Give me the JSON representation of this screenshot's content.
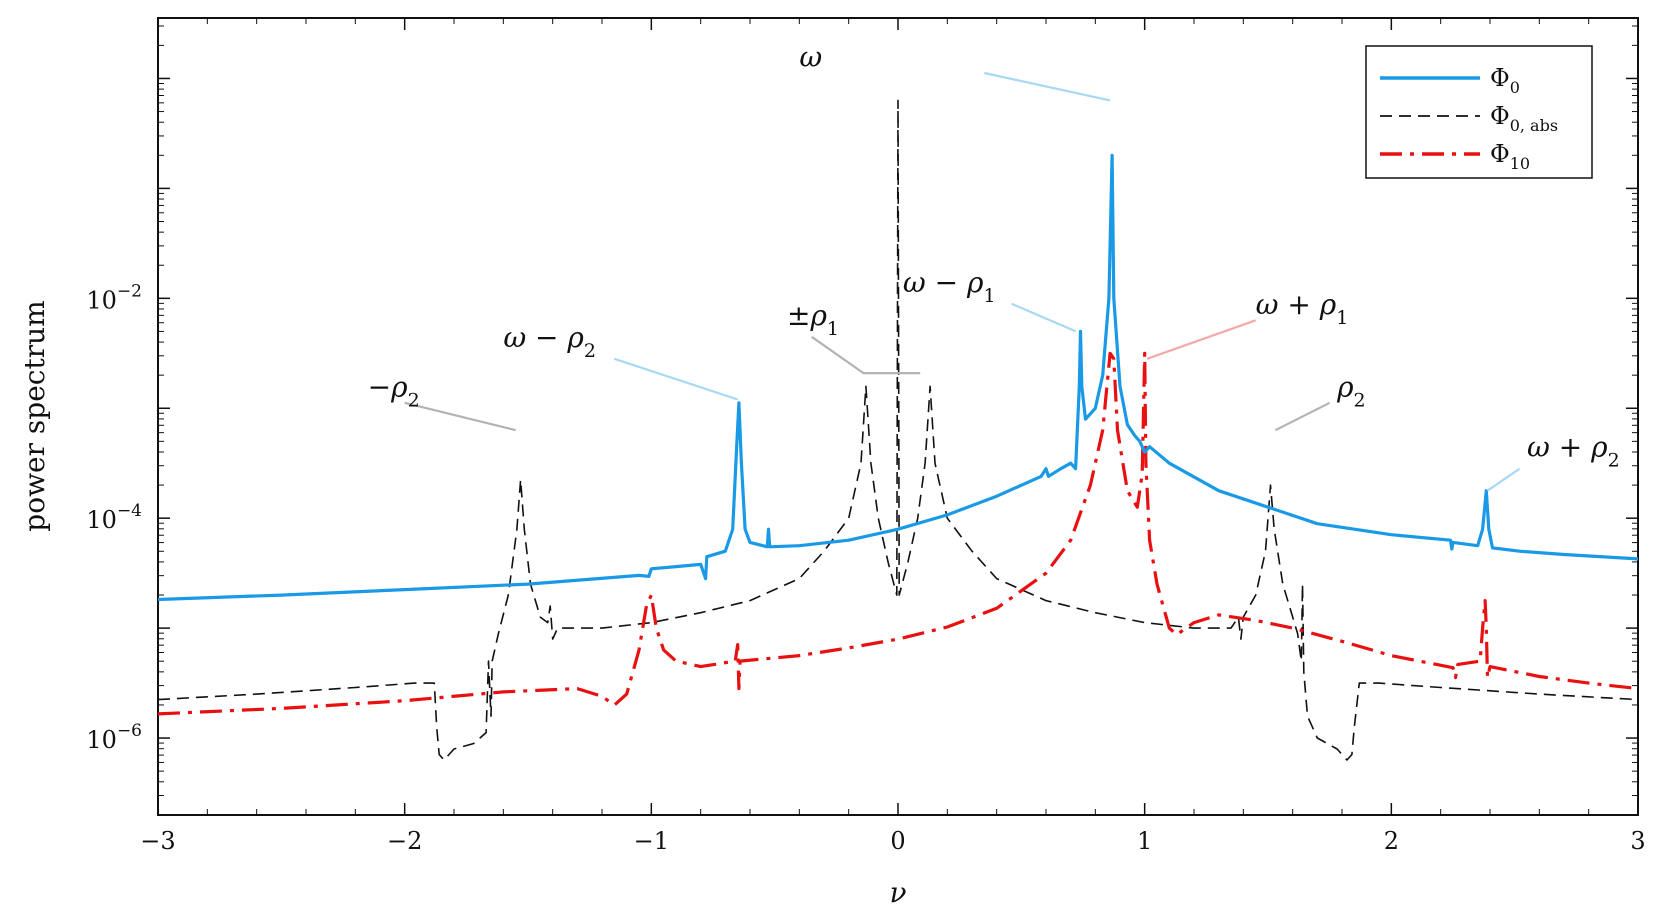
{
  "chart_data": {
    "type": "line",
    "xlabel": "ν",
    "ylabel": "power spectrum",
    "xlim": [
      -3,
      3
    ],
    "ylim_log10": [
      -6.7,
      0.55
    ],
    "yscale": "log",
    "grid": false,
    "legend_position": "top-right",
    "x_ticks": [
      {
        "value": -3,
        "label": "−3"
      },
      {
        "value": -2,
        "label": "−2"
      },
      {
        "value": -1,
        "label": "−1"
      },
      {
        "value": 0,
        "label": "0"
      },
      {
        "value": 1,
        "label": "1"
      },
      {
        "value": 2,
        "label": "2"
      },
      {
        "value": 3,
        "label": "3"
      }
    ],
    "y_ticks": [
      {
        "log10": -6,
        "base": "10",
        "exp": "−6"
      },
      {
        "log10": -4,
        "base": "10",
        "exp": "−4"
      },
      {
        "log10": -2,
        "base": "10",
        "exp": "−2"
      }
    ],
    "series": [
      {
        "name": "Φ0",
        "name_main": "Φ",
        "name_sub": "0",
        "color": "#1a9ae6",
        "dash": "",
        "points": [
          [
            -3,
            -4.74
          ],
          [
            -2.5,
            -4.7
          ],
          [
            -2.0,
            -4.65
          ],
          [
            -1.5,
            -4.6
          ],
          [
            -1.05,
            -4.52
          ],
          [
            -1.01,
            -4.53
          ],
          [
            -1.0,
            -4.46
          ],
          [
            -0.9,
            -4.44
          ],
          [
            -0.8,
            -4.42
          ],
          [
            -0.78,
            -4.55
          ],
          [
            -0.775,
            -4.35
          ],
          [
            -0.7,
            -4.3
          ],
          [
            -0.67,
            -4.1
          ],
          [
            -0.655,
            -3.4
          ],
          [
            -0.645,
            -2.95
          ],
          [
            -0.635,
            -3.5
          ],
          [
            -0.62,
            -4.1
          ],
          [
            -0.6,
            -4.22
          ],
          [
            -0.53,
            -4.26
          ],
          [
            -0.525,
            -4.1
          ],
          [
            -0.52,
            -4.26
          ],
          [
            -0.4,
            -4.25
          ],
          [
            -0.2,
            -4.2
          ],
          [
            0.0,
            -4.1
          ],
          [
            0.2,
            -3.97
          ],
          [
            0.4,
            -3.8
          ],
          [
            0.58,
            -3.62
          ],
          [
            0.6,
            -3.55
          ],
          [
            0.61,
            -3.62
          ],
          [
            0.66,
            -3.55
          ],
          [
            0.7,
            -3.5
          ],
          [
            0.72,
            -3.55
          ],
          [
            0.735,
            -2.8
          ],
          [
            0.74,
            -2.3
          ],
          [
            0.745,
            -2.8
          ],
          [
            0.76,
            -3.1
          ],
          [
            0.8,
            -3.0
          ],
          [
            0.83,
            -2.7
          ],
          [
            0.855,
            -2.0
          ],
          [
            0.868,
            -0.7
          ],
          [
            0.875,
            -2.0
          ],
          [
            0.9,
            -2.8
          ],
          [
            0.93,
            -3.15
          ],
          [
            0.96,
            -3.25
          ],
          [
            0.98,
            -3.3
          ],
          [
            1.0,
            -3.4
          ],
          [
            1.02,
            -3.35
          ],
          [
            1.1,
            -3.5
          ],
          [
            1.3,
            -3.75
          ],
          [
            1.5,
            -3.9
          ],
          [
            1.7,
            -4.05
          ],
          [
            2.0,
            -4.15
          ],
          [
            2.24,
            -4.2
          ],
          [
            2.245,
            -4.28
          ],
          [
            2.25,
            -4.22
          ],
          [
            2.35,
            -4.25
          ],
          [
            2.37,
            -4.1
          ],
          [
            2.385,
            -3.75
          ],
          [
            2.395,
            -4.1
          ],
          [
            2.41,
            -4.27
          ],
          [
            2.52,
            -4.3
          ],
          [
            2.7,
            -4.33
          ],
          [
            3.0,
            -4.37
          ]
        ]
      },
      {
        "name": "Φ0, abs",
        "name_main": "Φ",
        "name_sub": "0, abs",
        "color": "#111111",
        "dash": "12,7",
        "points": [
          [
            -3,
            -5.65
          ],
          [
            -2.6,
            -5.6
          ],
          [
            -2.2,
            -5.54
          ],
          [
            -1.96,
            -5.5
          ],
          [
            -1.88,
            -5.5
          ],
          [
            -1.87,
            -5.9
          ],
          [
            -1.86,
            -6.15
          ],
          [
            -1.84,
            -6.2
          ],
          [
            -1.8,
            -6.1
          ],
          [
            -1.72,
            -6.05
          ],
          [
            -1.67,
            -5.95
          ],
          [
            -1.66,
            -5.3
          ],
          [
            -1.65,
            -5.8
          ],
          [
            -1.645,
            -5.3
          ],
          [
            -1.62,
            -5.05
          ],
          [
            -1.58,
            -4.7
          ],
          [
            -1.545,
            -4.1
          ],
          [
            -1.53,
            -3.65
          ],
          [
            -1.515,
            -4.1
          ],
          [
            -1.49,
            -4.6
          ],
          [
            -1.45,
            -4.9
          ],
          [
            -1.42,
            -4.95
          ],
          [
            -1.41,
            -4.8
          ],
          [
            -1.4,
            -5.1
          ],
          [
            -1.38,
            -5.0
          ],
          [
            -1.2,
            -5.0
          ],
          [
            -1.0,
            -4.95
          ],
          [
            -0.8,
            -4.86
          ],
          [
            -0.6,
            -4.75
          ],
          [
            -0.4,
            -4.55
          ],
          [
            -0.3,
            -4.3
          ],
          [
            -0.2,
            -4.0
          ],
          [
            -0.15,
            -3.5
          ],
          [
            -0.13,
            -2.8
          ],
          [
            -0.11,
            -3.5
          ],
          [
            -0.08,
            -4.0
          ],
          [
            -0.04,
            -4.4
          ],
          [
            -0.005,
            -4.7
          ],
          [
            0.0,
            -0.2
          ],
          [
            0.005,
            -4.7
          ],
          [
            0.04,
            -4.4
          ],
          [
            0.08,
            -4.0
          ],
          [
            0.11,
            -3.5
          ],
          [
            0.13,
            -2.8
          ],
          [
            0.15,
            -3.5
          ],
          [
            0.2,
            -4.0
          ],
          [
            0.3,
            -4.3
          ],
          [
            0.4,
            -4.55
          ],
          [
            0.6,
            -4.75
          ],
          [
            0.8,
            -4.86
          ],
          [
            1.0,
            -4.95
          ],
          [
            1.2,
            -5.0
          ],
          [
            1.35,
            -5.0
          ],
          [
            1.38,
            -4.9
          ],
          [
            1.39,
            -5.1
          ],
          [
            1.4,
            -4.9
          ],
          [
            1.45,
            -4.7
          ],
          [
            1.49,
            -4.3
          ],
          [
            1.51,
            -3.7
          ],
          [
            1.525,
            -4.1
          ],
          [
            1.56,
            -4.6
          ],
          [
            1.6,
            -4.9
          ],
          [
            1.62,
            -5.05
          ],
          [
            1.635,
            -5.3
          ],
          [
            1.64,
            -4.6
          ],
          [
            1.645,
            -5.4
          ],
          [
            1.66,
            -5.8
          ],
          [
            1.7,
            -6.0
          ],
          [
            1.78,
            -6.1
          ],
          [
            1.82,
            -6.2
          ],
          [
            1.84,
            -6.15
          ],
          [
            1.85,
            -5.9
          ],
          [
            1.87,
            -5.5
          ],
          [
            1.95,
            -5.5
          ],
          [
            2.2,
            -5.54
          ],
          [
            2.6,
            -5.6
          ],
          [
            3.0,
            -5.65
          ]
        ]
      },
      {
        "name": "Φ10",
        "name_main": "Φ",
        "name_sub": "10",
        "color": "#e81010",
        "dash": "22,8,4,8",
        "points": [
          [
            -3,
            -5.78
          ],
          [
            -2.5,
            -5.73
          ],
          [
            -2.0,
            -5.66
          ],
          [
            -1.6,
            -5.58
          ],
          [
            -1.3,
            -5.55
          ],
          [
            -1.2,
            -5.62
          ],
          [
            -1.15,
            -5.7
          ],
          [
            -1.1,
            -5.6
          ],
          [
            -1.05,
            -5.2
          ],
          [
            -1.02,
            -4.8
          ],
          [
            -1.0,
            -4.7
          ],
          [
            -0.98,
            -5.0
          ],
          [
            -0.95,
            -5.2
          ],
          [
            -0.9,
            -5.3
          ],
          [
            -0.8,
            -5.35
          ],
          [
            -0.66,
            -5.3
          ],
          [
            -0.65,
            -5.15
          ],
          [
            -0.645,
            -5.55
          ],
          [
            -0.64,
            -5.3
          ],
          [
            -0.4,
            -5.25
          ],
          [
            -0.2,
            -5.18
          ],
          [
            0.0,
            -5.1
          ],
          [
            0.2,
            -4.99
          ],
          [
            0.4,
            -4.82
          ],
          [
            0.6,
            -4.5
          ],
          [
            0.7,
            -4.2
          ],
          [
            0.78,
            -3.7
          ],
          [
            0.83,
            -3.2
          ],
          [
            0.86,
            -2.5
          ],
          [
            0.875,
            -2.55
          ],
          [
            0.89,
            -3.2
          ],
          [
            0.93,
            -3.75
          ],
          [
            0.97,
            -3.9
          ],
          [
            0.99,
            -3.6
          ],
          [
            1.0,
            -2.5
          ],
          [
            1.005,
            -3.5
          ],
          [
            1.02,
            -4.2
          ],
          [
            1.05,
            -4.6
          ],
          [
            1.1,
            -5.0
          ],
          [
            1.13,
            -5.06
          ],
          [
            1.2,
            -4.95
          ],
          [
            1.3,
            -4.88
          ],
          [
            1.45,
            -4.93
          ],
          [
            1.6,
            -5.0
          ],
          [
            1.8,
            -5.12
          ],
          [
            2.0,
            -5.25
          ],
          [
            2.25,
            -5.36
          ],
          [
            2.26,
            -5.45
          ],
          [
            2.27,
            -5.33
          ],
          [
            2.36,
            -5.3
          ],
          [
            2.37,
            -5.0
          ],
          [
            2.38,
            -4.75
          ],
          [
            2.385,
            -5.0
          ],
          [
            2.39,
            -5.45
          ],
          [
            2.4,
            -5.35
          ],
          [
            2.6,
            -5.44
          ],
          [
            2.8,
            -5.5
          ],
          [
            3.0,
            -5.55
          ]
        ]
      }
    ],
    "annotations": [
      {
        "main": "ω",
        "sub": "",
        "color": "#a8d8f5",
        "text_x": -0.4,
        "text_log10": 0.2,
        "line": [
          [
            0.35,
            0.05
          ],
          [
            0.86,
            -0.2
          ]
        ]
      },
      {
        "main": "ω − ρ",
        "sub": "1",
        "color": "#a8d8f5",
        "text_x": 0.02,
        "text_log10": -1.85,
        "line": [
          [
            0.46,
            -2.05
          ],
          [
            0.72,
            -2.3
          ]
        ]
      },
      {
        "main": "ω + ρ",
        "sub": "1",
        "color": "#f4a9a9",
        "text_x": 1.45,
        "text_log10": -2.05,
        "line": [
          [
            1.45,
            -2.2
          ],
          [
            1.01,
            -2.55
          ]
        ]
      },
      {
        "main": "ω − ρ",
        "sub": "2",
        "color": "#a8d8f5",
        "text_x": -1.6,
        "text_log10": -2.35,
        "line": [
          [
            -1.15,
            -2.55
          ],
          [
            -0.65,
            -2.92
          ]
        ]
      },
      {
        "main": "±ρ",
        "sub": "1",
        "color": "#b3b3b3",
        "text_x": -0.45,
        "text_log10": -2.15,
        "line": [
          [
            -0.35,
            -2.35
          ],
          [
            -0.14,
            -2.68
          ],
          [
            0.09,
            -2.68
          ]
        ]
      },
      {
        "main": "−ρ",
        "sub": "2",
        "color": "#b3b3b3",
        "text_x": -2.15,
        "text_log10": -2.8,
        "line": [
          [
            -2.0,
            -2.95
          ],
          [
            -1.55,
            -3.2
          ]
        ]
      },
      {
        "main": "ρ",
        "sub": "2",
        "color": "#b3b3b3",
        "text_x": 1.78,
        "text_log10": -2.8,
        "line": [
          [
            1.75,
            -2.95
          ],
          [
            1.53,
            -3.2
          ]
        ]
      },
      {
        "main": "ω + ρ",
        "sub": "2",
        "color": "#a8d8f5",
        "text_x": 2.55,
        "text_log10": -3.35,
        "line": [
          [
            2.52,
            -3.55
          ],
          [
            2.39,
            -3.75
          ]
        ]
      }
    ]
  }
}
